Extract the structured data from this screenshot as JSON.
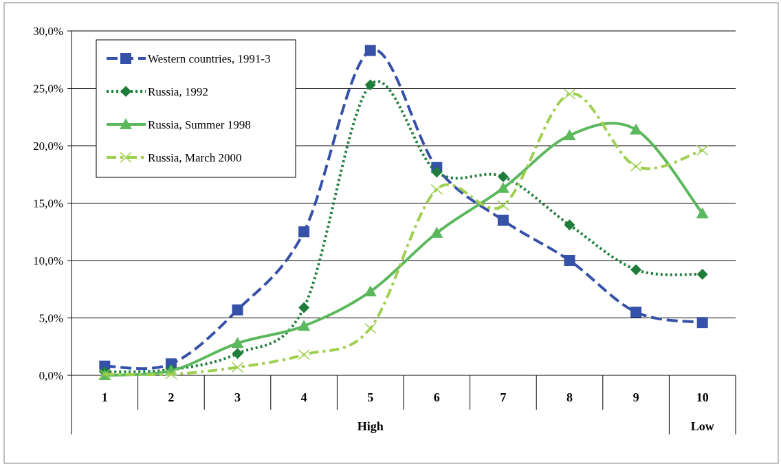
{
  "chart_data": {
    "type": "line",
    "categories": [
      "1",
      "2",
      "3",
      "4",
      "5",
      "6",
      "7",
      "8",
      "9",
      "10"
    ],
    "group_labels": [
      "High",
      "Low"
    ],
    "y_ticks": [
      "0,0%",
      "5,0%",
      "10,0%",
      "15,0%",
      "20,0%",
      "25,0%",
      "30,0%"
    ],
    "ylim": [
      0,
      30
    ],
    "grid": true,
    "legend_position": "top-left",
    "series": [
      {
        "name": "Western countries, 1991-3",
        "color": "#3651a8",
        "dash": "long-dash",
        "marker": "square",
        "values": [
          0.8,
          1.0,
          5.7,
          12.5,
          28.3,
          18.1,
          13.5,
          10.0,
          5.5,
          4.6
        ]
      },
      {
        "name": "Russia, 1992",
        "color": "#1e7d3a",
        "dash": "dot",
        "marker": "diamond",
        "values": [
          0.3,
          0.5,
          1.9,
          5.9,
          25.3,
          17.7,
          17.3,
          13.1,
          9.2,
          8.8
        ]
      },
      {
        "name": "Russia, Summer 1998",
        "color": "#5cb85c",
        "dash": "solid",
        "marker": "triangle",
        "values": [
          0.0,
          0.4,
          2.8,
          4.3,
          7.3,
          12.4,
          16.3,
          20.9,
          21.4,
          14.1
        ]
      },
      {
        "name": "Russia, March 2000",
        "color": "#9fcf4f",
        "dash": "dash-dot",
        "marker": "x",
        "values": [
          0.1,
          0.1,
          0.7,
          1.8,
          4.1,
          16.2,
          14.8,
          24.5,
          18.2,
          19.6
        ]
      }
    ]
  }
}
